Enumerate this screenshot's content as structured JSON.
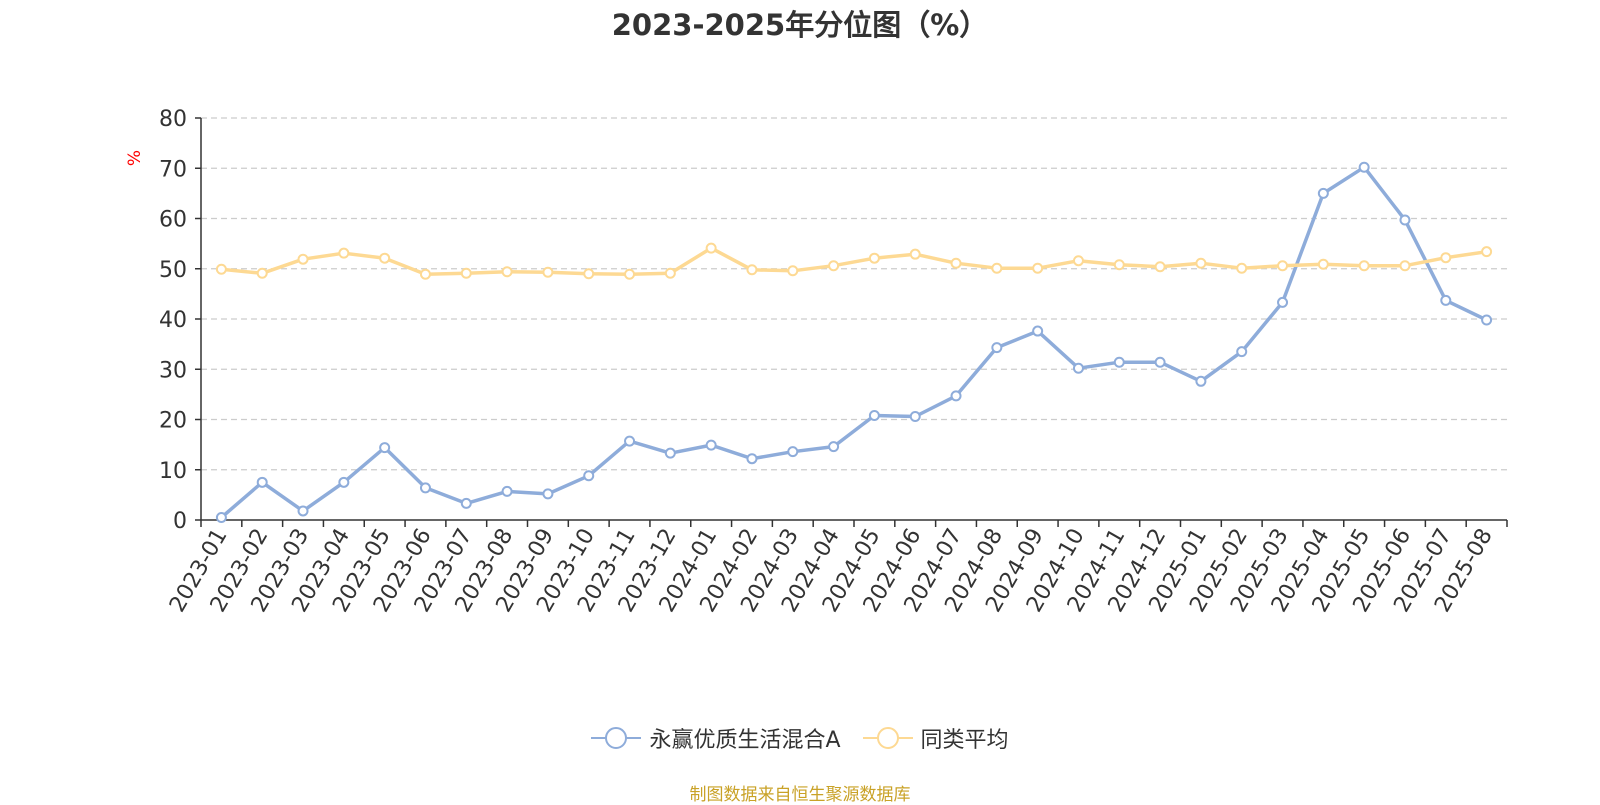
{
  "colors": {
    "fund": "#8eacda",
    "avg": "#fdd993",
    "title": "#333333",
    "axis_unit": "#ff0000",
    "source": "#c9a227",
    "grid": "#cccccc",
    "axis": "#333333"
  },
  "chart_data": {
    "type": "line",
    "title": "2023-2025年分位图（%）",
    "ylabel": "%",
    "xlabel": "",
    "ylim": [
      0,
      80
    ],
    "yticks": [
      0,
      10,
      20,
      30,
      40,
      50,
      60,
      70,
      80
    ],
    "grid": true,
    "legend_position": "bottom-center",
    "marker": "circle",
    "categories": [
      "2023-01",
      "2023-02",
      "2023-03",
      "2023-04",
      "2023-05",
      "2023-06",
      "2023-07",
      "2023-08",
      "2023-09",
      "2023-10",
      "2023-11",
      "2023-12",
      "2024-01",
      "2024-02",
      "2024-03",
      "2024-04",
      "2024-05",
      "2024-06",
      "2024-07",
      "2024-08",
      "2024-09",
      "2024-10",
      "2024-11",
      "2024-12",
      "2025-01",
      "2025-02",
      "2025-03",
      "2025-04",
      "2025-05",
      "2025-06",
      "2025-07",
      "2025-08"
    ],
    "series": [
      {
        "name": "永赢优质生活混合A",
        "color_key": "fund",
        "values": [
          0.5,
          7.5,
          1.8,
          7.5,
          14.4,
          6.4,
          3.3,
          5.7,
          5.2,
          8.8,
          15.7,
          13.3,
          14.9,
          12.2,
          13.6,
          14.6,
          20.8,
          20.6,
          24.7,
          34.3,
          37.6,
          30.2,
          31.4,
          31.4,
          27.6,
          33.5,
          43.3,
          65.0,
          70.2,
          59.7,
          43.7,
          39.8
        ]
      },
      {
        "name": "同类平均",
        "color_key": "avg",
        "values": [
          49.9,
          49.1,
          51.9,
          53.1,
          52.1,
          48.9,
          49.1,
          49.4,
          49.3,
          49.0,
          48.9,
          49.1,
          54.1,
          49.8,
          49.6,
          50.6,
          52.1,
          52.9,
          51.1,
          50.1,
          50.1,
          51.6,
          50.8,
          50.4,
          51.1,
          50.1,
          50.6,
          50.9,
          50.6,
          50.6,
          52.2,
          53.4
        ]
      }
    ]
  },
  "source_text": "制图数据来自恒生聚源数据库"
}
